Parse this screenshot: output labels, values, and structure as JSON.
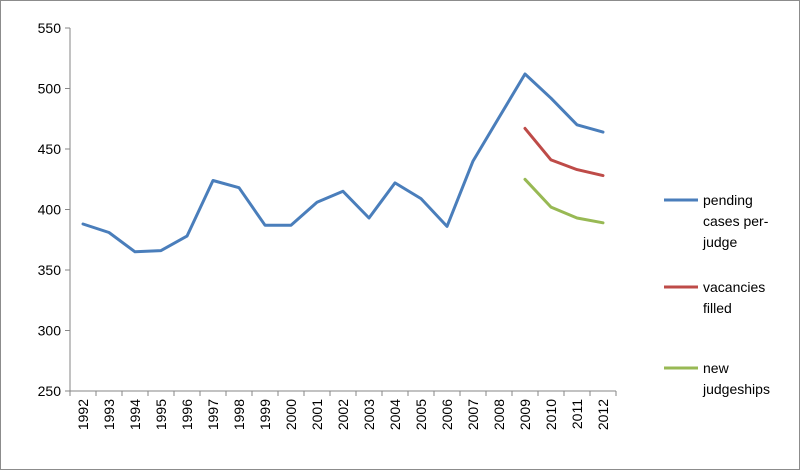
{
  "chart_data": {
    "type": "line",
    "title": "",
    "xlabel": "",
    "ylabel": "",
    "x": [
      "1992",
      "1993",
      "1994",
      "1995",
      "1996",
      "1997",
      "1998",
      "1999",
      "2000",
      "2001",
      "2002",
      "2003",
      "2004",
      "2005",
      "2006",
      "2007",
      "2008",
      "2009",
      "2010",
      "2011",
      "2012"
    ],
    "ylim": [
      250,
      550
    ],
    "yticks": [
      250,
      300,
      350,
      400,
      450,
      500,
      550
    ],
    "grid": false,
    "legend_position": "right",
    "series": [
      {
        "name": "pending cases per-judge",
        "label_lines": [
          "pending",
          "cases per-",
          "judge"
        ],
        "color": "#4a7ebb",
        "values": [
          388,
          381,
          365,
          366,
          378,
          424,
          418,
          387,
          387,
          406,
          415,
          393,
          422,
          409,
          386,
          440,
          476,
          512,
          492,
          470,
          464
        ]
      },
      {
        "name": "vacancies filled",
        "label_lines": [
          "vacancies",
          "filled"
        ],
        "color": "#be4b48",
        "values": [
          null,
          null,
          null,
          null,
          null,
          null,
          null,
          null,
          null,
          null,
          null,
          null,
          null,
          null,
          null,
          null,
          null,
          467,
          441,
          433,
          428
        ]
      },
      {
        "name": "new judgeships",
        "label_lines": [
          "new",
          "judgeships"
        ],
        "color": "#98b954",
        "values": [
          null,
          null,
          null,
          null,
          null,
          null,
          null,
          null,
          null,
          null,
          null,
          null,
          null,
          null,
          null,
          null,
          null,
          425,
          402,
          393,
          389
        ]
      }
    ]
  }
}
